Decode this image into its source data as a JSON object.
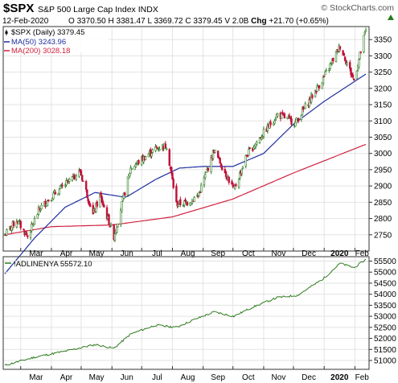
{
  "header": {
    "symbol": "$SPX",
    "name": "S&P 500 Large Cap Index",
    "exchange": "INDX",
    "watermark": "© StockCharts.com",
    "date": "12-Feb-2020",
    "open_label": "O",
    "open": "3370.50",
    "high_label": "H",
    "high": "3381.47",
    "low_label": "L",
    "low": "3369.72",
    "close_label": "C",
    "close": "3379.45",
    "volume_label": "V",
    "volume": "2.0B",
    "change_label": "Chg",
    "change": "+21.70 (+0.65%)"
  },
  "colors": {
    "price_up": "#2a7a1e",
    "price_down": "#c0103a",
    "ma50": "#1f2fa0",
    "ma200": "#d0213d",
    "breadth": "#2d7a1d",
    "grid": "#e3e3e3",
    "border": "#333333"
  },
  "chart_data": [
    {
      "type": "candlestick",
      "legend": [
        {
          "label": "$SPX (Daily) 3379.45",
          "color": "#000000",
          "style": "candle-icon"
        },
        {
          "label": "MA(50) 3243.96",
          "color": "#1f2fa0",
          "style": "line"
        },
        {
          "label": "MA(200) 3028.18",
          "color": "#d0213d",
          "style": "line"
        }
      ],
      "x_tick_labels": [
        "Mar",
        "Apr",
        "May",
        "Jun",
        "Jul",
        "Aug",
        "Sep",
        "Oct",
        "Nov",
        "Dec",
        "2020",
        "Feb"
      ],
      "y_tick_labels": [
        2750,
        2800,
        2850,
        2900,
        2950,
        3000,
        3050,
        3100,
        3150,
        3200,
        3250,
        3300,
        3350
      ],
      "ylim": [
        2700,
        3390
      ],
      "price_anchors": [
        [
          "2019-02-13",
          2750
        ],
        [
          "2019-02-25",
          2795
        ],
        [
          "2019-03-08",
          2745
        ],
        [
          "2019-03-20",
          2830
        ],
        [
          "2019-04-01",
          2867
        ],
        [
          "2019-04-30",
          2945
        ],
        [
          "2019-05-13",
          2812
        ],
        [
          "2019-05-20",
          2870
        ],
        [
          "2019-06-03",
          2745
        ],
        [
          "2019-06-20",
          2955
        ],
        [
          "2019-07-15",
          3015
        ],
        [
          "2019-07-26",
          3025
        ],
        [
          "2019-08-05",
          2845
        ],
        [
          "2019-08-15",
          2848
        ],
        [
          "2019-08-27",
          2870
        ],
        [
          "2019-09-12",
          3010
        ],
        [
          "2019-10-02",
          2887
        ],
        [
          "2019-10-15",
          2995
        ],
        [
          "2019-11-15",
          3120
        ],
        [
          "2019-12-03",
          3095
        ],
        [
          "2019-12-31",
          3230
        ],
        [
          "2020-01-17",
          3330
        ],
        [
          "2020-01-31",
          3225
        ],
        [
          "2020-02-12",
          3379
        ]
      ],
      "ma50_anchors": [
        [
          "2019-02-13",
          2630
        ],
        [
          "2019-03-15",
          2740
        ],
        [
          "2019-04-15",
          2835
        ],
        [
          "2019-05-15",
          2880
        ],
        [
          "2019-06-15",
          2865
        ],
        [
          "2019-07-15",
          2920
        ],
        [
          "2019-08-08",
          2955
        ],
        [
          "2019-09-01",
          2960
        ],
        [
          "2019-10-01",
          2960
        ],
        [
          "2019-11-01",
          3000
        ],
        [
          "2019-12-01",
          3090
        ],
        [
          "2020-01-01",
          3160
        ],
        [
          "2020-02-12",
          3244
        ]
      ],
      "ma200_anchors": [
        [
          "2019-02-13",
          2750
        ],
        [
          "2019-04-01",
          2775
        ],
        [
          "2019-06-01",
          2780
        ],
        [
          "2019-08-01",
          2805
        ],
        [
          "2019-10-01",
          2860
        ],
        [
          "2019-12-01",
          2940
        ],
        [
          "2020-02-12",
          3028
        ]
      ]
    },
    {
      "type": "line",
      "legend": [
        {
          "label": "!ADLINENYA 55572.10",
          "color": "#2d7a1d",
          "style": "line"
        }
      ],
      "x_tick_labels": [
        "Mar",
        "Apr",
        "May",
        "Jun",
        "Jul",
        "Aug",
        "Sep",
        "Oct",
        "Nov",
        "Dec",
        "2020",
        "Feb"
      ],
      "y_tick_labels": [
        51000,
        51500,
        52000,
        52500,
        53000,
        53500,
        54000,
        54500,
        55000,
        55500
      ],
      "ylim": [
        50600,
        55700
      ],
      "anchors": [
        [
          "2019-02-13",
          50780
        ],
        [
          "2019-03-15",
          51150
        ],
        [
          "2019-04-15",
          51420
        ],
        [
          "2019-05-15",
          51720
        ],
        [
          "2019-06-03",
          51550
        ],
        [
          "2019-06-20",
          52200
        ],
        [
          "2019-07-15",
          52600
        ],
        [
          "2019-08-05",
          52500
        ],
        [
          "2019-08-20",
          52800
        ],
        [
          "2019-09-12",
          53200
        ],
        [
          "2019-10-02",
          53000
        ],
        [
          "2019-10-20",
          53400
        ],
        [
          "2019-11-15",
          53850
        ],
        [
          "2019-12-05",
          53950
        ],
        [
          "2019-12-31",
          54700
        ],
        [
          "2020-01-17",
          55400
        ],
        [
          "2020-01-31",
          55200
        ],
        [
          "2020-02-12",
          55572
        ]
      ]
    }
  ]
}
